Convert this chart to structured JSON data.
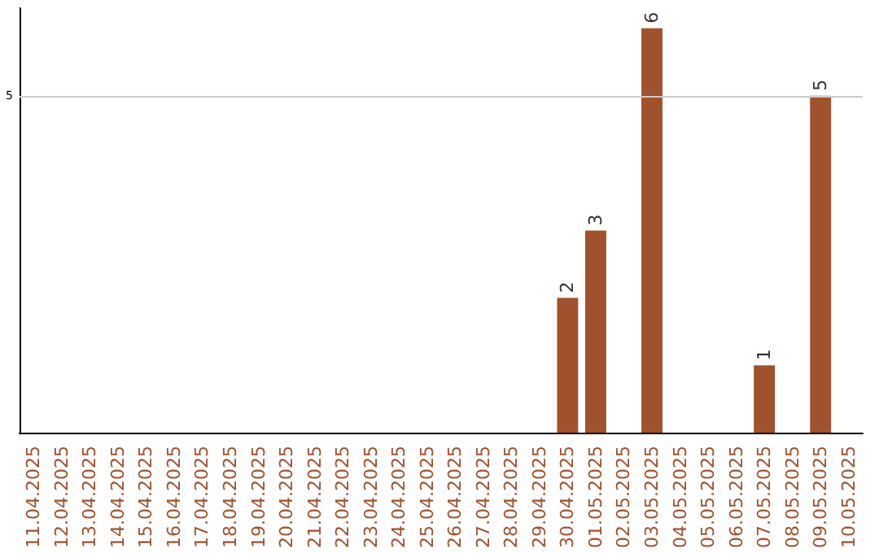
{
  "chart_data": {
    "type": "bar",
    "categories": [
      "11.04.2025",
      "12.04.2025",
      "13.04.2025",
      "14.04.2025",
      "15.04.2025",
      "16.04.2025",
      "17.04.2025",
      "18.04.2025",
      "19.04.2025",
      "20.04.2025",
      "21.04.2025",
      "22.04.2025",
      "23.04.2025",
      "24.04.2025",
      "25.04.2025",
      "26.04.2025",
      "27.04.2025",
      "28.04.2025",
      "29.04.2025",
      "30.04.2025",
      "01.05.2025",
      "02.05.2025",
      "03.05.2025",
      "04.05.2025",
      "05.05.2025",
      "06.05.2025",
      "07.05.2025",
      "08.05.2025",
      "09.05.2025",
      "10.05.2025"
    ],
    "values": [
      null,
      null,
      null,
      null,
      null,
      null,
      null,
      null,
      null,
      null,
      null,
      null,
      null,
      null,
      null,
      null,
      null,
      null,
      null,
      2,
      3,
      null,
      6,
      null,
      null,
      null,
      1,
      null,
      5,
      null
    ],
    "data_labels": true,
    "color": "#a0522d",
    "ylim": [
      0,
      6.3
    ],
    "tick_labels": "x",
    "ref_lines": [
      {
        "axis": "y",
        "value": 5,
        "label": "5",
        "color": "#cccccc"
      }
    ]
  }
}
